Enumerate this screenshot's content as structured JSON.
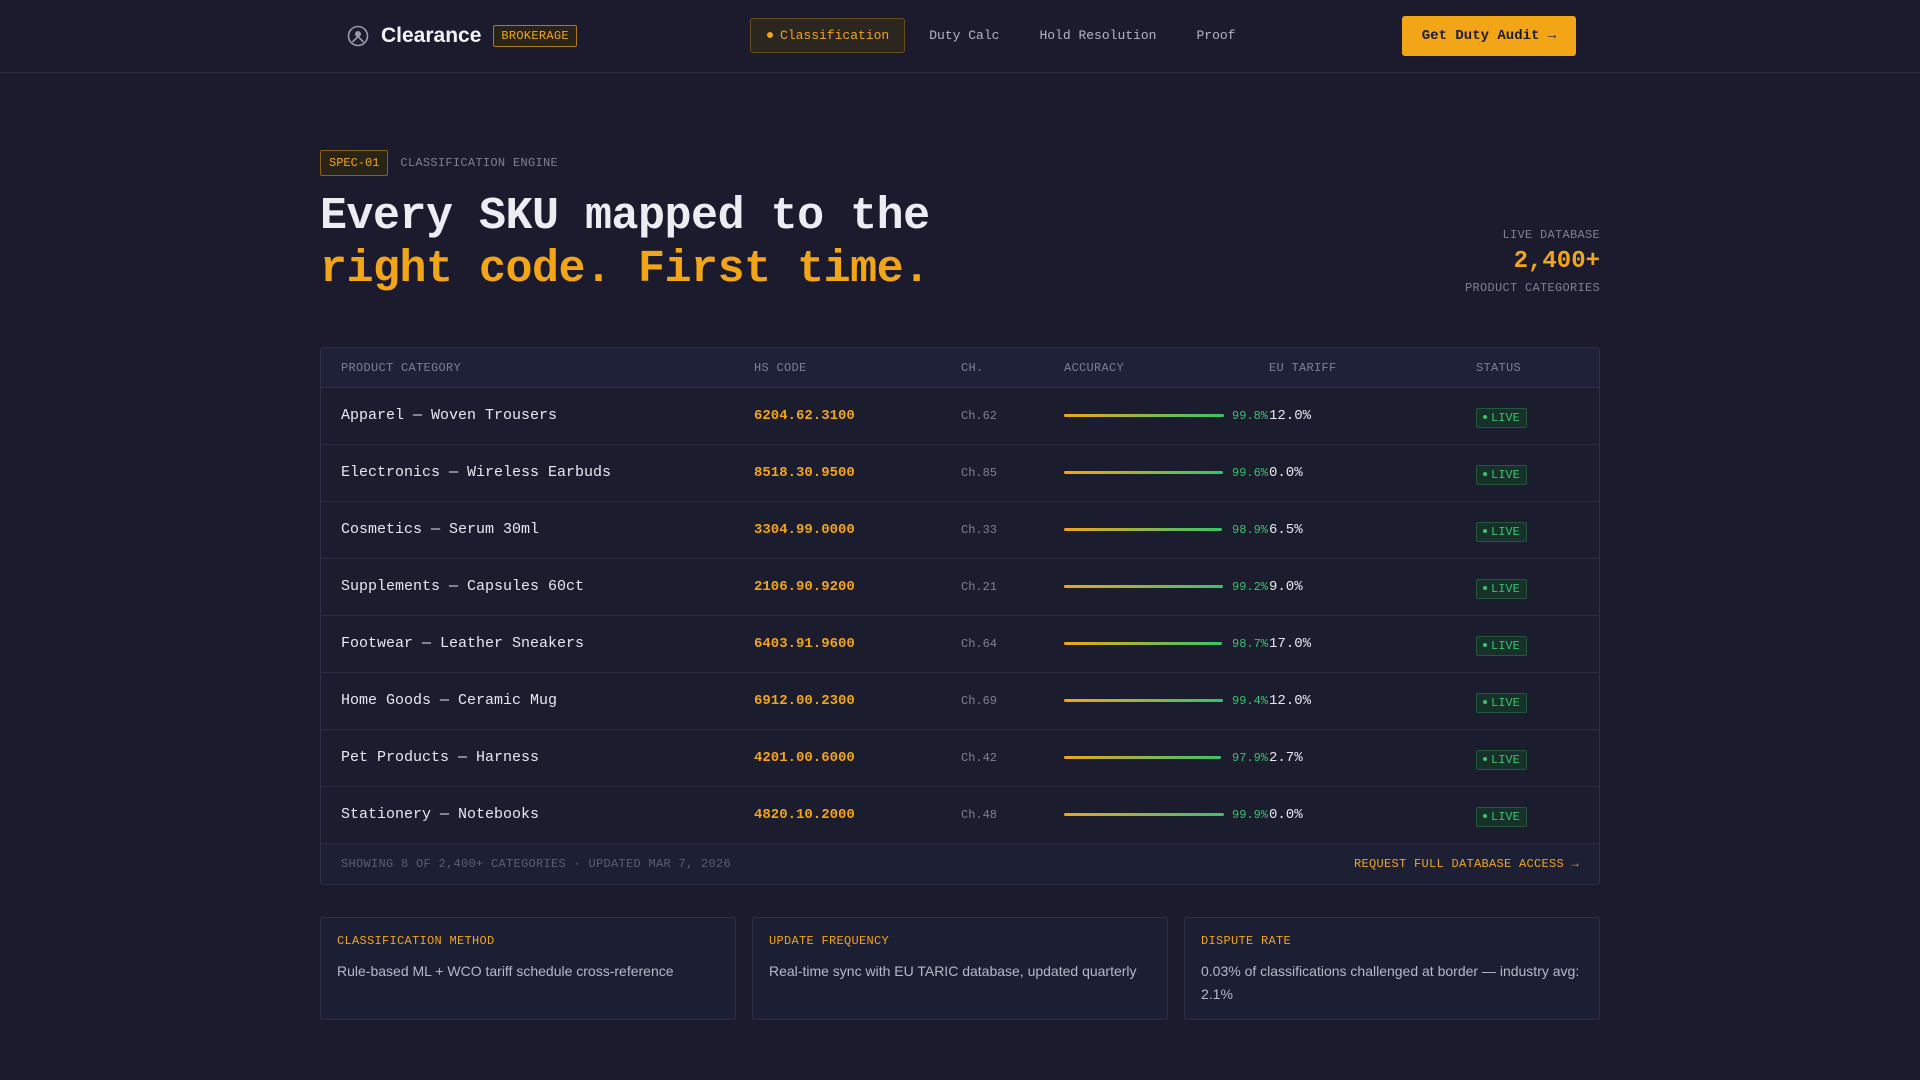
{
  "nav": {
    "brand": "Clearance",
    "brand_tag": "BROKERAGE",
    "logo_icon": "compass-icon",
    "links": [
      {
        "label": "Classification",
        "active": true
      },
      {
        "label": "Duty Calc",
        "active": false
      },
      {
        "label": "Hold Resolution",
        "active": false
      },
      {
        "label": "Proof",
        "active": false
      }
    ],
    "cta": "Get Duty Audit →"
  },
  "hero": {
    "spec_tag": "SPEC-01",
    "spec_label": "CLASSIFICATION ENGINE",
    "headline_line1": "Every SKU mapped to the",
    "headline_line2": "right code. First time.",
    "stat_label": "LIVE DATABASE",
    "stat_value": "2,400+",
    "stat_sub": "PRODUCT CATEGORIES"
  },
  "table": {
    "headers": [
      "PRODUCT CATEGORY",
      "HS CODE",
      "CH.",
      "ACCURACY",
      "EU TARIFF",
      "STATUS"
    ],
    "rows": [
      {
        "category": "Apparel — Woven Trousers",
        "hs": "6204.62.3100",
        "ch": "Ch.62",
        "accuracy": "99.8%",
        "accuracy_value": 99.8,
        "tariff": "12.0%",
        "status": "LIVE"
      },
      {
        "category": "Electronics — Wireless Earbuds",
        "hs": "8518.30.9500",
        "ch": "Ch.85",
        "accuracy": "99.6%",
        "accuracy_value": 99.6,
        "tariff": "0.0%",
        "status": "LIVE"
      },
      {
        "category": "Cosmetics — Serum 30ml",
        "hs": "3304.99.0000",
        "ch": "Ch.33",
        "accuracy": "98.9%",
        "accuracy_value": 98.9,
        "tariff": "6.5%",
        "status": "LIVE"
      },
      {
        "category": "Supplements — Capsules 60ct",
        "hs": "2106.90.9200",
        "ch": "Ch.21",
        "accuracy": "99.2%",
        "accuracy_value": 99.2,
        "tariff": "9.0%",
        "status": "LIVE"
      },
      {
        "category": "Footwear — Leather Sneakers",
        "hs": "6403.91.9600",
        "ch": "Ch.64",
        "accuracy": "98.7%",
        "accuracy_value": 98.7,
        "tariff": "17.0%",
        "status": "LIVE"
      },
      {
        "category": "Home Goods — Ceramic Mug",
        "hs": "6912.00.2300",
        "ch": "Ch.69",
        "accuracy": "99.4%",
        "accuracy_value": 99.4,
        "tariff": "12.0%",
        "status": "LIVE"
      },
      {
        "category": "Pet Products — Harness",
        "hs": "4201.00.6000",
        "ch": "Ch.42",
        "accuracy": "97.9%",
        "accuracy_value": 97.9,
        "tariff": "2.7%",
        "status": "LIVE"
      },
      {
        "category": "Stationery — Notebooks",
        "hs": "4820.10.2000",
        "ch": "Ch.48",
        "accuracy": "99.9%",
        "accuracy_value": 99.9,
        "tariff": "0.0%",
        "status": "LIVE"
      }
    ],
    "footer_left": "SHOWING 8 OF 2,400+ CATEGORIES · UPDATED MAR 7, 2026",
    "footer_right": "REQUEST FULL DATABASE ACCESS →"
  },
  "cards": [
    {
      "title": "CLASSIFICATION METHOD",
      "body": "Rule-based ML + WCO tariff schedule cross-reference"
    },
    {
      "title": "UPDATE FREQUENCY",
      "body": "Real-time sync with EU TARIC database, updated quarterly"
    },
    {
      "title": "DISPUTE RATE",
      "body": "0.03% of classifications challenged at border — industry avg: 2.1%"
    }
  ],
  "colors": {
    "background": "#1b1b2d",
    "accent": "#f2a516",
    "success": "#35c46a",
    "muted": "#7f7f93"
  }
}
